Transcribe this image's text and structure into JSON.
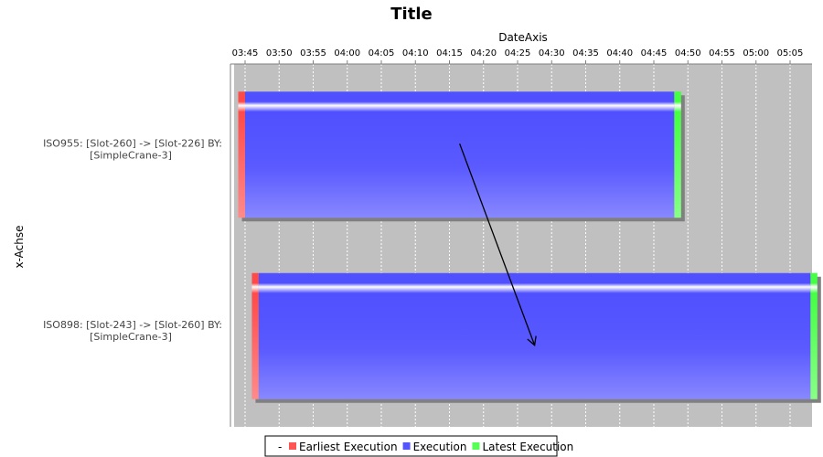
{
  "chart_data": {
    "type": "gantt",
    "title": "Title",
    "xlabel": "DateAxis",
    "ylabel": "x-Achse",
    "x_ticks": [
      "03:45",
      "03:50",
      "03:55",
      "04:00",
      "04:05",
      "04:10",
      "04:15",
      "04:20",
      "04:25",
      "04:30",
      "04:35",
      "04:40",
      "04:45",
      "04:50",
      "04:55",
      "05:00",
      "05:05"
    ],
    "x_range": [
      "03:44",
      "05:09"
    ],
    "grid": true,
    "background": "#c0c0c0",
    "legend_position": "bottom",
    "tasks": [
      {
        "label_lines": [
          "ISO955: [Slot-260] -> [Slot-226] BY:",
          "[SimpleCrane-3]"
        ],
        "earliest": {
          "start": "03:44",
          "end": "03:45"
        },
        "execution": {
          "start": "03:45",
          "end": "04:48"
        },
        "latest": {
          "start": "04:48",
          "end": "04:49"
        }
      },
      {
        "label_lines": [
          "ISO898: [Slot-243] -> [Slot-260] BY:",
          "[SimpleCrane-3]"
        ],
        "earliest": {
          "start": "03:46",
          "end": "03:47"
        },
        "execution": {
          "start": "03:47",
          "end": "05:08"
        },
        "latest": {
          "start": "05:08",
          "end": "05:09"
        }
      }
    ],
    "dependencies": [
      {
        "from": 0,
        "to": 1
      }
    ],
    "series": [
      {
        "name": "Earliest Execution",
        "color": "#ff5555"
      },
      {
        "name": "Execution",
        "color": "#5555ff"
      },
      {
        "name": "Latest Execution",
        "color": "#55ff55"
      }
    ],
    "legend_prefix": "-"
  }
}
